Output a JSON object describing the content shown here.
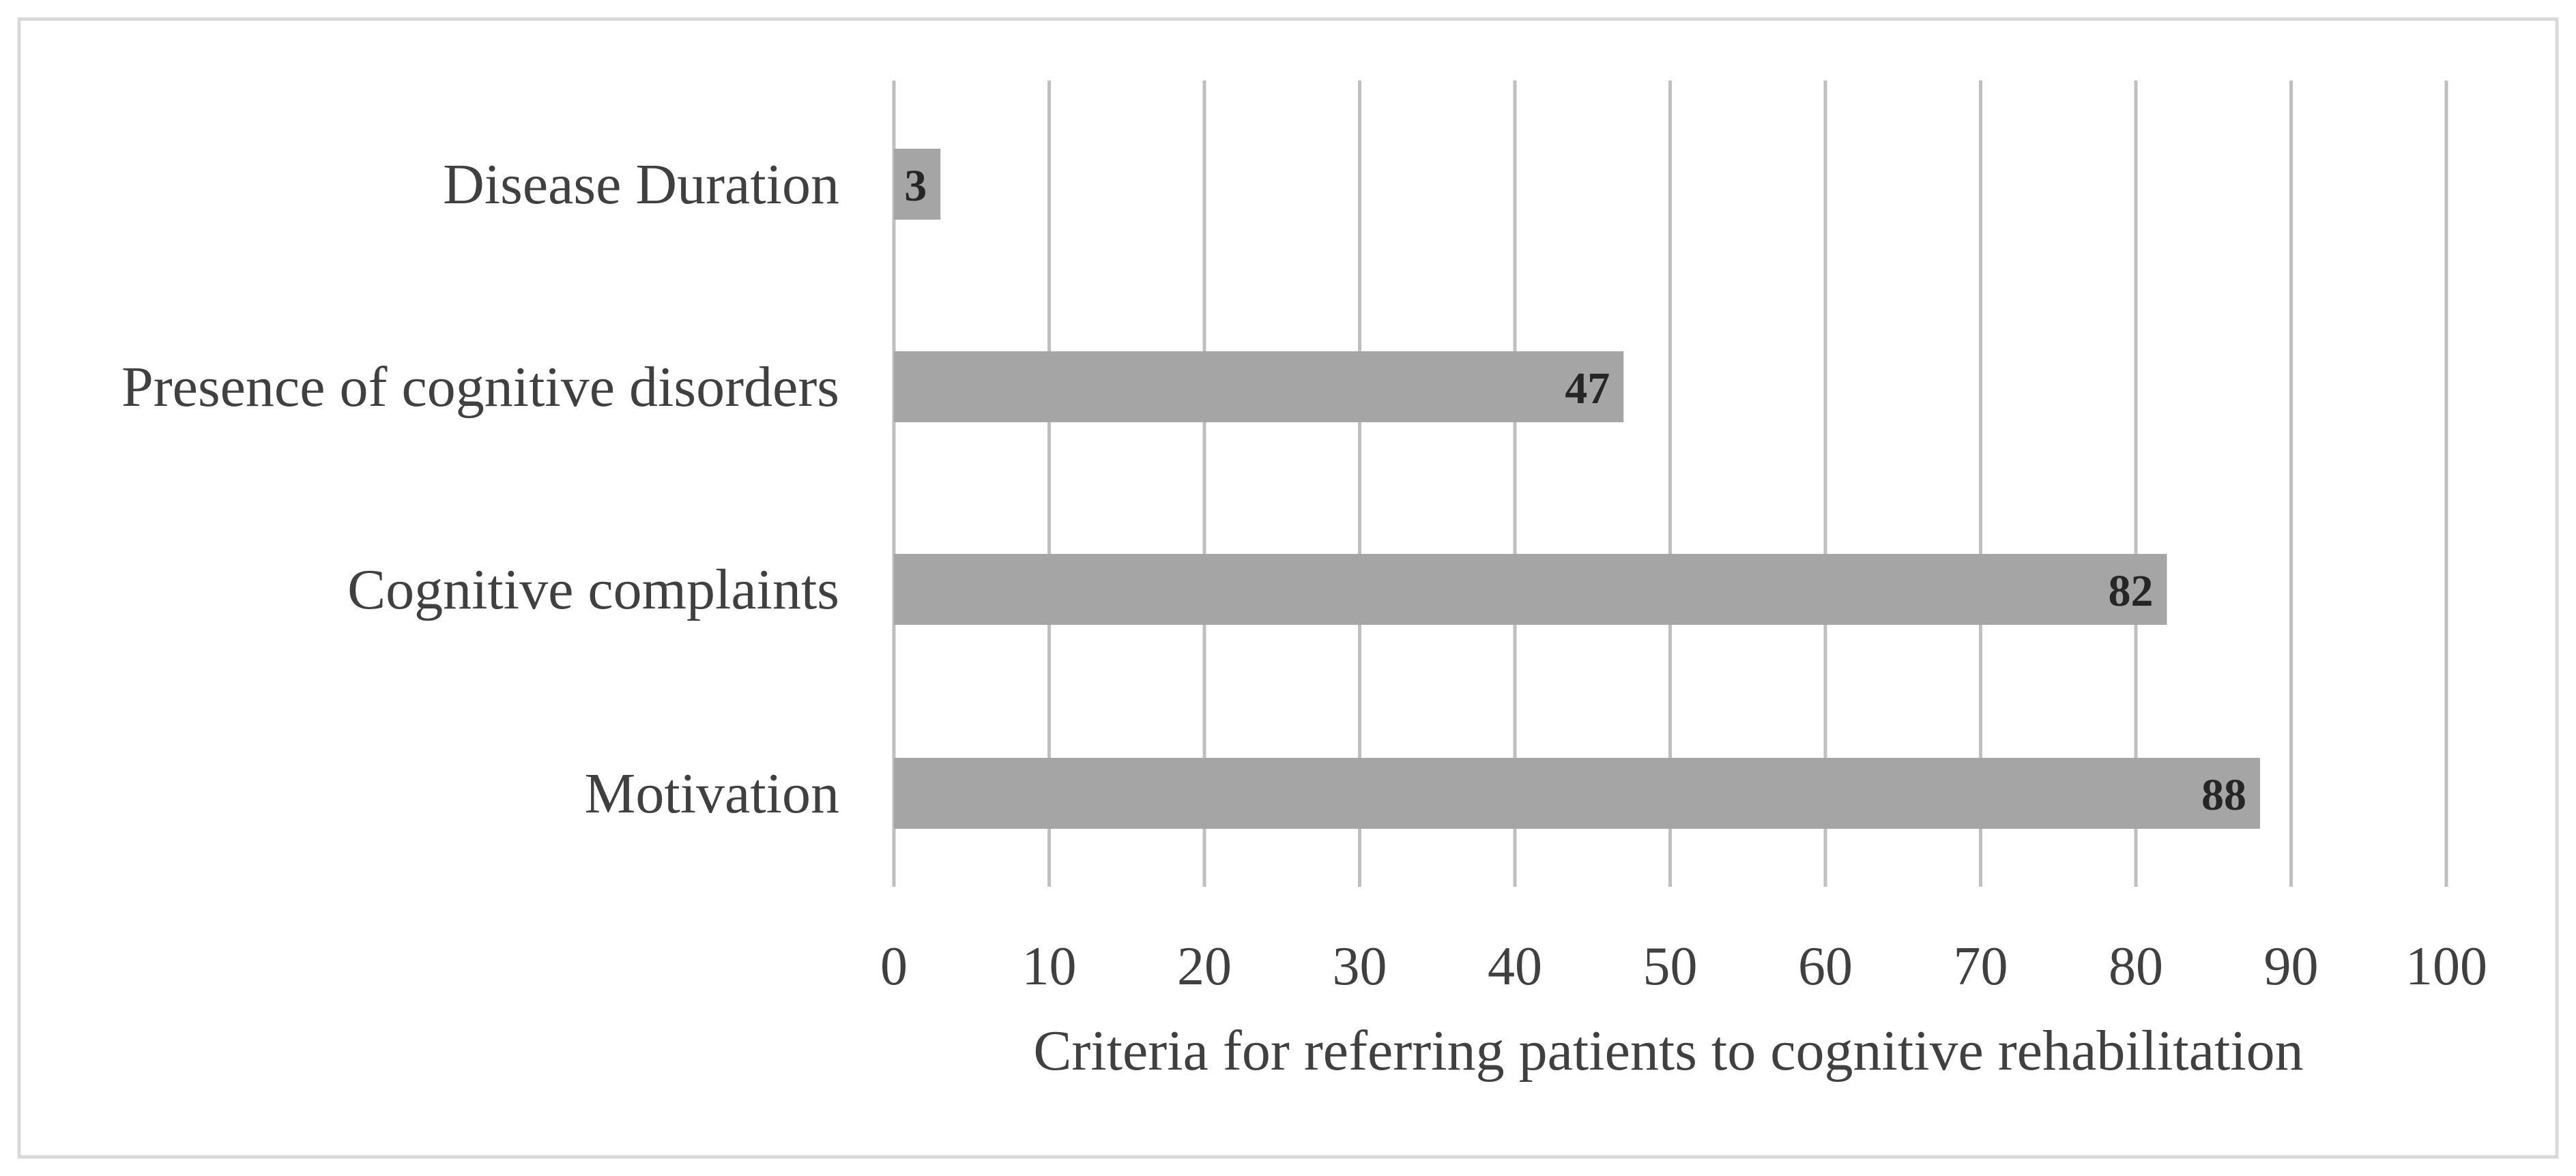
{
  "chart_data": {
    "type": "bar",
    "orientation": "horizontal",
    "categories": [
      "Disease Duration",
      "Presence of cognitive disorders",
      "Cognitive complaints",
      "Motivation"
    ],
    "values": [
      3,
      47,
      82,
      88
    ],
    "data_labels": [
      "3",
      "47",
      "82",
      "88"
    ],
    "title": "",
    "xlabel": "Criteria for referring patients to cognitive rehabilitation",
    "ylabel": "",
    "xlim": [
      0,
      100
    ],
    "x_ticks": [
      "0",
      "10",
      "20",
      "30",
      "40",
      "50",
      "60",
      "70",
      "80",
      "90",
      "100"
    ],
    "grid": "vertical",
    "legend": "none"
  },
  "colors": {
    "bar": "#a5a5a5",
    "gridline": "#bfbfbf",
    "frame_border": "#d9d9d9",
    "text": "#404040",
    "data_label": "#262626"
  }
}
